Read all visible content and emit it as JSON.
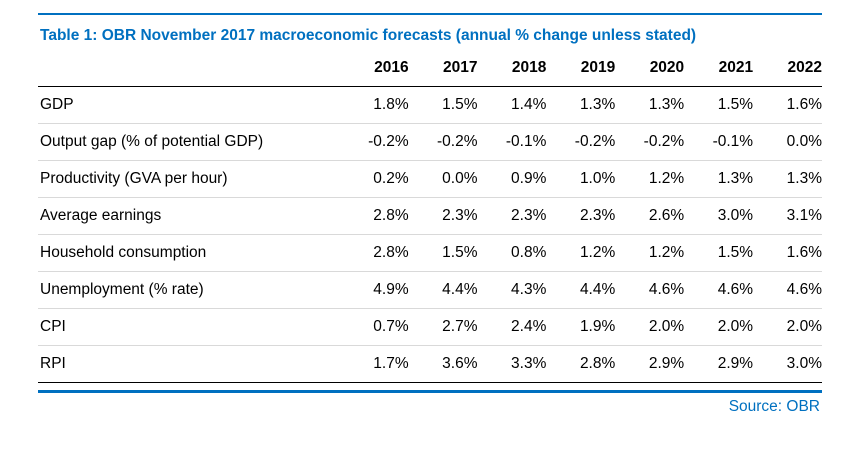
{
  "colors": {
    "accent": "#0070c0"
  },
  "table": {
    "title": "Table 1: OBR November 2017 macroeconomic forecasts (annual % change unless stated)",
    "columns": [
      "2016",
      "2017",
      "2018",
      "2019",
      "2020",
      "2021",
      "2022"
    ],
    "rows": [
      {
        "label": "GDP",
        "values": [
          "1.8%",
          "1.5%",
          "1.4%",
          "1.3%",
          "1.3%",
          "1.5%",
          "1.6%"
        ]
      },
      {
        "label": "Output gap (% of potential GDP)",
        "values": [
          "-0.2%",
          "-0.2%",
          "-0.1%",
          "-0.2%",
          "-0.2%",
          "-0.1%",
          "0.0%"
        ]
      },
      {
        "label": "Productivity (GVA per hour)",
        "values": [
          "0.2%",
          "0.0%",
          "0.9%",
          "1.0%",
          "1.2%",
          "1.3%",
          "1.3%"
        ]
      },
      {
        "label": "Average earnings",
        "values": [
          "2.8%",
          "2.3%",
          "2.3%",
          "2.3%",
          "2.6%",
          "3.0%",
          "3.1%"
        ]
      },
      {
        "label": "Household consumption",
        "values": [
          "2.8%",
          "1.5%",
          "0.8%",
          "1.2%",
          "1.2%",
          "1.5%",
          "1.6%"
        ]
      },
      {
        "label": "Unemployment (% rate)",
        "values": [
          "4.9%",
          "4.4%",
          "4.3%",
          "4.4%",
          "4.6%",
          "4.6%",
          "4.6%"
        ]
      },
      {
        "label": "CPI",
        "values": [
          "0.7%",
          "2.7%",
          "2.4%",
          "1.9%",
          "2.0%",
          "2.0%",
          "2.0%"
        ]
      },
      {
        "label": "RPI",
        "values": [
          "1.7%",
          "3.6%",
          "3.3%",
          "2.8%",
          "2.9%",
          "2.9%",
          "3.0%"
        ]
      }
    ],
    "source": "Source: OBR"
  }
}
